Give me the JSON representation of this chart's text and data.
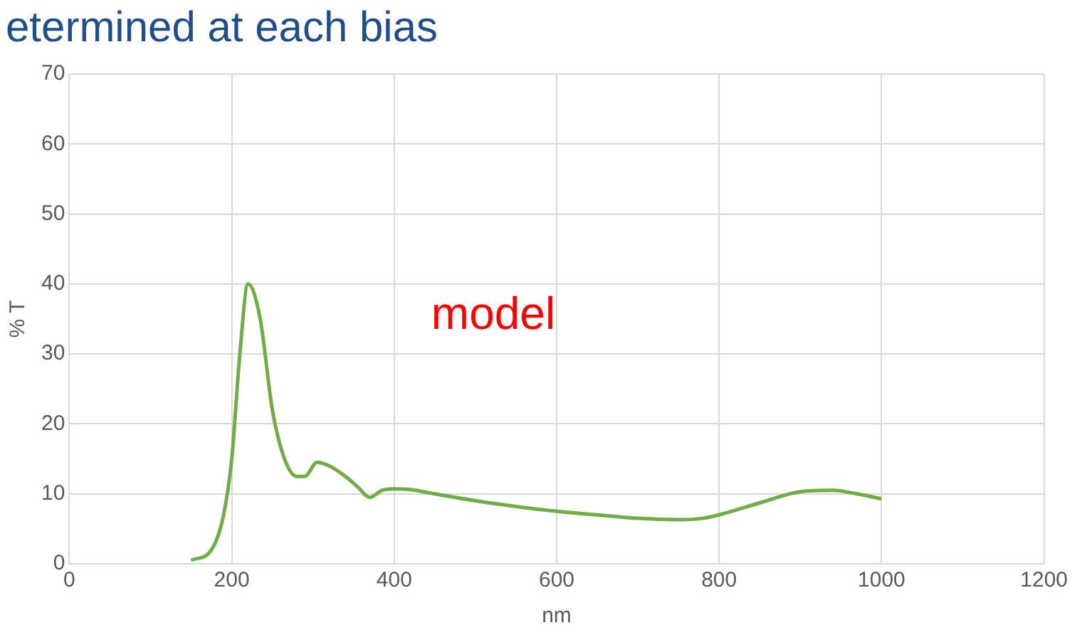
{
  "chart_data": {
    "type": "line",
    "title": "etermined at each bias",
    "xlabel": "nm",
    "ylabel": "% T",
    "annotations": [
      "model"
    ],
    "series": [
      {
        "color": "#70ad47",
        "x": [
          150,
          175,
          190,
          200,
          210,
          220,
          235,
          250,
          265,
          280,
          290,
          305,
          320,
          340,
          355,
          370,
          385,
          400,
          420,
          450,
          500,
          550,
          600,
          650,
          700,
          750,
          780,
          800,
          850,
          900,
          940,
          970,
          1000
        ],
        "values": [
          0.5,
          2,
          7,
          15,
          30,
          40,
          35,
          22,
          15,
          12.5,
          12.5,
          14.5,
          14,
          12.5,
          11,
          9.5,
          10.5,
          10.7,
          10.6,
          10,
          9,
          8.2,
          7.5,
          7,
          6.5,
          6.3,
          6.5,
          7,
          8.7,
          10.3,
          10.5,
          10,
          9.3
        ]
      }
    ],
    "xlim": [
      0,
      1200
    ],
    "xticks": [
      0,
      200,
      400,
      600,
      800,
      1000,
      1200
    ],
    "ylim": [
      0,
      70
    ],
    "yticks": [
      0,
      10,
      20,
      30,
      40,
      50,
      60,
      70
    ],
    "grid": true,
    "legend": false,
    "marker": "none",
    "line_style": "solid"
  }
}
